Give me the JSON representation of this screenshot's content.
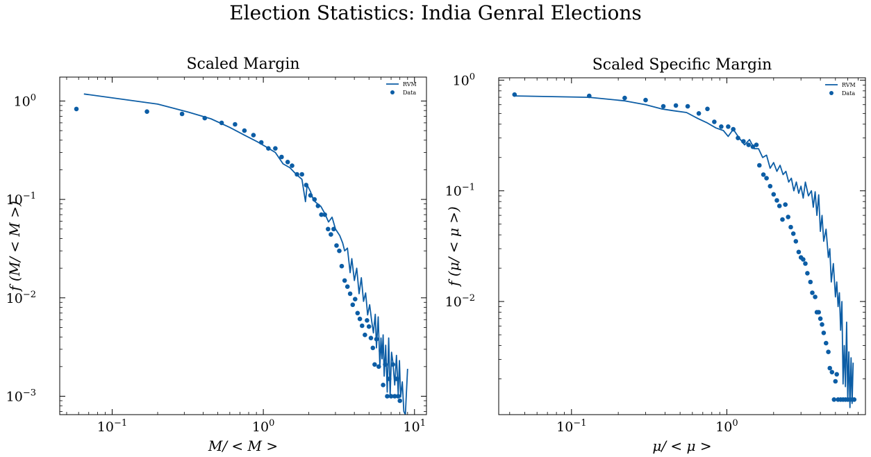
{
  "suptitle": "Election Statistics: India Genral Elections",
  "colors": {
    "series": "#0C5DA5",
    "axis": "#000000",
    "background": "#ffffff"
  },
  "chart_data": [
    {
      "type": "line",
      "title": "Scaled Margin",
      "xlabel": "M/ < M >",
      "ylabel": "f (M/ < M >)",
      "xscale": "log",
      "yscale": "log",
      "xlim": [
        0.045,
        12
      ],
      "ylim": [
        0.00065,
        1.75
      ],
      "xticks": [
        {
          "value": 0.1,
          "base": "10",
          "exp": "−1"
        },
        {
          "value": 1,
          "base": "10",
          "exp": "0"
        },
        {
          "value": 10,
          "base": "10",
          "exp": "1"
        }
      ],
      "yticks": [
        {
          "value": 0.001,
          "base": "10",
          "exp": "−3"
        },
        {
          "value": 0.01,
          "base": "10",
          "exp": "−2"
        },
        {
          "value": 0.1,
          "base": "10",
          "exp": "−1"
        },
        {
          "value": 1,
          "base": "10",
          "exp": "0"
        }
      ],
      "legend_position": "top-right",
      "series": [
        {
          "name": "RVM",
          "kind": "line",
          "x": [
            0.065,
            0.2,
            0.32,
            0.45,
            0.6,
            0.75,
            0.9,
            1.05,
            1.2,
            1.35,
            1.5,
            1.65,
            1.8,
            1.9,
            1.95,
            2.05,
            2.15,
            2.25,
            2.4,
            2.55,
            2.7,
            2.85,
            3.0,
            3.2,
            3.35,
            3.45,
            3.6,
            3.75,
            3.85,
            4.0,
            4.15,
            4.3,
            4.45,
            4.6,
            4.75,
            4.9,
            5.05,
            5.2,
            5.35,
            5.5,
            5.6,
            5.75,
            5.9,
            6.0,
            6.1,
            6.2,
            6.3,
            6.45,
            6.6,
            6.75,
            6.9,
            7.05,
            7.2,
            7.4,
            7.6,
            7.8,
            7.95,
            8.1,
            8.3,
            8.5,
            8.7,
            9.0
          ],
          "y": [
            1.18,
            0.93,
            0.77,
            0.66,
            0.54,
            0.45,
            0.39,
            0.34,
            0.3,
            0.23,
            0.21,
            0.18,
            0.16,
            0.095,
            0.14,
            0.12,
            0.098,
            0.092,
            0.085,
            0.072,
            0.059,
            0.066,
            0.05,
            0.043,
            0.036,
            0.03,
            0.032,
            0.018,
            0.025,
            0.015,
            0.02,
            0.011,
            0.016,
            0.0092,
            0.0112,
            0.0067,
            0.0085,
            0.0059,
            0.0044,
            0.0068,
            0.0031,
            0.0064,
            0.002,
            0.0039,
            0.0024,
            0.0042,
            0.0016,
            0.0033,
            0.0011,
            0.0039,
            0.001,
            0.0028,
            0.0022,
            0.0013,
            0.0026,
            0.00105,
            0.0023,
            0.00098,
            0.0014,
            0.0007,
            0.00065,
            0.0019
          ]
        },
        {
          "name": "Data",
          "kind": "scatter",
          "x": [
            0.058,
            0.17,
            0.29,
            0.41,
            0.53,
            0.65,
            0.75,
            0.86,
            0.97,
            1.08,
            1.2,
            1.32,
            1.45,
            1.55,
            1.67,
            1.8,
            1.92,
            2.05,
            2.18,
            2.3,
            2.42,
            2.55,
            2.68,
            2.8,
            2.92,
            3.05,
            3.18,
            3.3,
            3.45,
            3.6,
            3.75,
            3.9,
            4.05,
            4.2,
            4.35,
            4.5,
            4.7,
            4.85,
            5.0,
            5.15,
            5.3,
            5.45,
            5.6,
            5.8,
            6.0,
            6.2,
            6.4,
            6.6,
            6.8,
            7.0,
            7.2,
            7.4,
            7.6,
            7.8,
            8.0
          ],
          "y": [
            0.83,
            0.78,
            0.74,
            0.67,
            0.6,
            0.58,
            0.5,
            0.45,
            0.38,
            0.33,
            0.33,
            0.27,
            0.24,
            0.22,
            0.18,
            0.18,
            0.14,
            0.11,
            0.1,
            0.086,
            0.07,
            0.07,
            0.05,
            0.044,
            0.05,
            0.034,
            0.03,
            0.021,
            0.015,
            0.013,
            0.011,
            0.0085,
            0.0097,
            0.007,
            0.0061,
            0.0052,
            0.0042,
            0.0059,
            0.0051,
            0.0039,
            0.0031,
            0.0021,
            0.0038,
            0.002,
            0.0029,
            0.0013,
            0.0021,
            0.001,
            0.0015,
            0.001,
            0.0021,
            0.001,
            0.0015,
            0.001,
            0.0009
          ]
        }
      ]
    },
    {
      "type": "line",
      "title": "Scaled Specific Margin",
      "xlabel": "μ/ < μ >",
      "ylabel": "f (μ/ < μ >)",
      "xscale": "log",
      "yscale": "log",
      "xlim": [
        0.034,
        7.8
      ],
      "ylim": [
        0.00095,
        1.05
      ],
      "xticks": [
        {
          "value": 0.1,
          "base": "10",
          "exp": "−1"
        },
        {
          "value": 1,
          "base": "10",
          "exp": "0"
        }
      ],
      "yticks": [
        {
          "value": 0.01,
          "base": "10",
          "exp": "−2"
        },
        {
          "value": 0.1,
          "base": "10",
          "exp": "−1"
        },
        {
          "value": 1,
          "base": "10",
          "exp": "0"
        }
      ],
      "legend_position": "top-right",
      "series": [
        {
          "name": "RVM",
          "kind": "line",
          "x": [
            0.043,
            0.13,
            0.22,
            0.3,
            0.38,
            0.45,
            0.55,
            0.65,
            0.75,
            0.85,
            0.95,
            1.02,
            1.1,
            1.2,
            1.3,
            1.4,
            1.5,
            1.6,
            1.7,
            1.8,
            1.9,
            2.0,
            2.1,
            2.2,
            2.3,
            2.4,
            2.5,
            2.6,
            2.7,
            2.8,
            2.9,
            3.0,
            3.1,
            3.2,
            3.35,
            3.5,
            3.6,
            3.7,
            3.8,
            3.9,
            4.0,
            4.1,
            4.2,
            4.35,
            4.5,
            4.6,
            4.7,
            4.85,
            5.0,
            5.1,
            5.2,
            5.3,
            5.4,
            5.5,
            5.6,
            5.7,
            5.8,
            5.9,
            6.0,
            6.1,
            6.2,
            6.3,
            6.4,
            6.5
          ],
          "y": [
            0.72,
            0.7,
            0.65,
            0.6,
            0.55,
            0.53,
            0.51,
            0.45,
            0.41,
            0.37,
            0.35,
            0.31,
            0.36,
            0.3,
            0.26,
            0.29,
            0.24,
            0.24,
            0.2,
            0.21,
            0.16,
            0.18,
            0.15,
            0.17,
            0.14,
            0.15,
            0.12,
            0.13,
            0.1,
            0.12,
            0.095,
            0.11,
            0.086,
            0.12,
            0.09,
            0.1,
            0.071,
            0.098,
            0.06,
            0.092,
            0.043,
            0.06,
            0.035,
            0.045,
            0.025,
            0.03,
            0.015,
            0.022,
            0.011,
            0.015,
            0.009,
            0.012,
            0.0055,
            0.01,
            0.0018,
            0.004,
            0.0017,
            0.0065,
            0.0013,
            0.0035,
            0.0011,
            0.0031,
            0.0012,
            0.0028
          ]
        },
        {
          "name": "Data",
          "kind": "scatter",
          "x": [
            0.043,
            0.13,
            0.22,
            0.3,
            0.39,
            0.47,
            0.56,
            0.66,
            0.75,
            0.83,
            0.92,
            1.02,
            1.1,
            1.18,
            1.28,
            1.38,
            1.47,
            1.55,
            1.62,
            1.72,
            1.8,
            1.9,
            2.0,
            2.1,
            2.18,
            2.28,
            2.38,
            2.48,
            2.58,
            2.68,
            2.78,
            2.9,
            3.0,
            3.1,
            3.2,
            3.3,
            3.45,
            3.55,
            3.7,
            3.8,
            3.9,
            4.0,
            4.1,
            4.2,
            4.35,
            4.5,
            4.6,
            4.75,
            4.9,
            5.0,
            5.1,
            5.2,
            5.4,
            5.6,
            5.8,
            6.0,
            6.2,
            6.4,
            6.6
          ],
          "y": [
            0.74,
            0.72,
            0.69,
            0.66,
            0.58,
            0.59,
            0.58,
            0.5,
            0.55,
            0.42,
            0.38,
            0.38,
            0.36,
            0.3,
            0.28,
            0.26,
            0.25,
            0.26,
            0.17,
            0.14,
            0.13,
            0.11,
            0.093,
            0.082,
            0.073,
            0.055,
            0.075,
            0.058,
            0.047,
            0.041,
            0.035,
            0.028,
            0.025,
            0.024,
            0.022,
            0.018,
            0.015,
            0.012,
            0.011,
            0.008,
            0.008,
            0.007,
            0.0062,
            0.0052,
            0.0042,
            0.0035,
            0.0025,
            0.0023,
            0.0013,
            0.0019,
            0.0022,
            0.0013,
            0.0013,
            0.0013,
            0.0013,
            0.0013,
            0.0013,
            0.0013,
            0.0013
          ]
        }
      ]
    }
  ]
}
